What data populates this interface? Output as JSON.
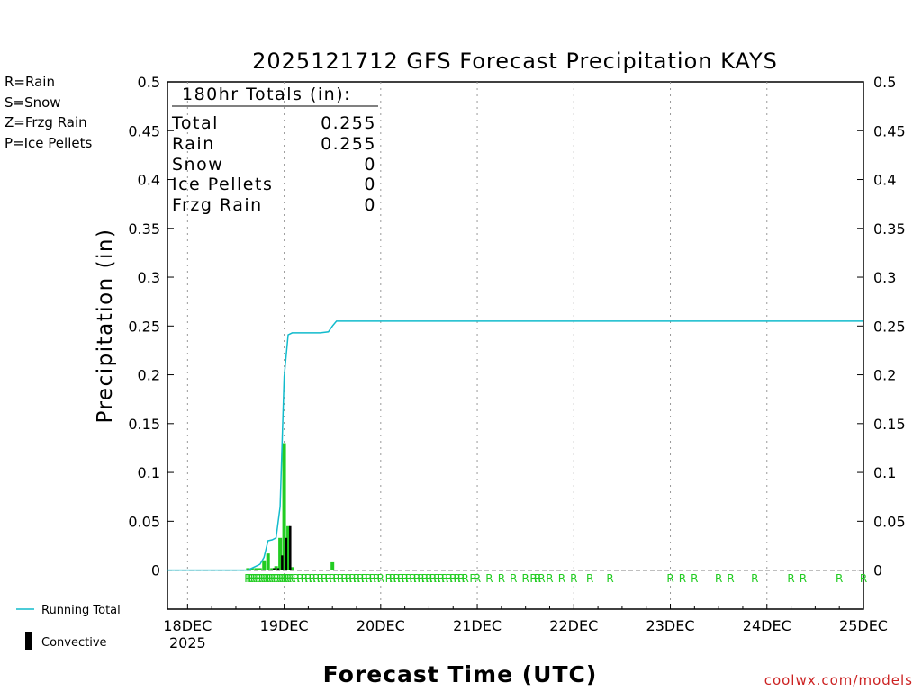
{
  "title": "2025121712 GFS Forecast Precipitation KAYS",
  "legend_types": [
    {
      "label": "R=Rain",
      "color": "#22cc22"
    },
    {
      "label": "S=Snow",
      "color": "#3355ee"
    },
    {
      "label": "Z=Frzg Rain",
      "color": "#ee8833"
    },
    {
      "label": "P=Ice Pellets",
      "color": "#ee22aa"
    }
  ],
  "totals": {
    "header": "180hr Totals (in):",
    "rows": [
      {
        "label": "Total",
        "value": "0.255"
      },
      {
        "label": "Rain",
        "value": "0.255"
      },
      {
        "label": "Snow",
        "value": "0"
      },
      {
        "label": "Ice Pellets",
        "value": "0"
      },
      {
        "label": "Frzg Rain",
        "value": "0"
      }
    ]
  },
  "legend_bottom": {
    "running_total": "Running Total",
    "convective": "Convective"
  },
  "watermark": "coolwx.com/models",
  "colors": {
    "rain": "#22cc22",
    "running_total": "#11bbcc",
    "convective": "#000000",
    "grid": "#999999"
  },
  "chart_data": {
    "type": "bar",
    "title": "2025121712 GFS Forecast Precipitation KAYS",
    "xlabel": "Forecast Time (UTC)",
    "ylabel": "Precipitation (in)",
    "ylim": [
      -0.04,
      0.5
    ],
    "xlim_hours": [
      -5,
      168
    ],
    "y_ticks": [
      "0",
      "0.05",
      "0.1",
      "0.15",
      "0.2",
      "0.25",
      "0.3",
      "0.35",
      "0.4",
      "0.45",
      "0.5"
    ],
    "x_ticks": [
      {
        "hour": 0,
        "label": "18DEC",
        "sublabel": "2025"
      },
      {
        "hour": 24,
        "label": "19DEC"
      },
      {
        "hour": 48,
        "label": "20DEC"
      },
      {
        "hour": 72,
        "label": "21DEC"
      },
      {
        "hour": 96,
        "label": "22DEC"
      },
      {
        "hour": 120,
        "label": "23DEC"
      },
      {
        "hour": 144,
        "label": "24DEC"
      },
      {
        "hour": 168,
        "label": "25DEC"
      }
    ],
    "grid": "vertical dotted",
    "series": [
      {
        "name": "Rain",
        "kind": "bar",
        "hours": [
          15,
          16,
          17,
          18,
          19,
          20,
          21,
          22,
          23,
          24,
          25,
          26,
          36
        ],
        "values": [
          0.002,
          0.002,
          0.002,
          0.002,
          0.01,
          0.017,
          0.002,
          0.004,
          0.033,
          0.13,
          0.045,
          0.003,
          0.008
        ]
      },
      {
        "name": "Convective",
        "kind": "bar",
        "hours": [
          21,
          22,
          23,
          24,
          25
        ],
        "values": [
          0.002,
          0.002,
          0.015,
          0.033,
          0.045
        ]
      },
      {
        "name": "Running Total",
        "kind": "line",
        "hours": [
          -5,
          15,
          16,
          17,
          18,
          19,
          20,
          21,
          22,
          23,
          24,
          25,
          26,
          27,
          30,
          33,
          35,
          36,
          37,
          168
        ],
        "values": [
          0,
          0,
          0.002,
          0.004,
          0.006,
          0.013,
          0.03,
          0.031,
          0.033,
          0.065,
          0.198,
          0.241,
          0.243,
          0.243,
          0.243,
          0.243,
          0.244,
          0.25,
          0.255,
          0.255
        ]
      }
    ],
    "precip_type_markers": {
      "symbol": "R",
      "hours": [
        15,
        15.5,
        16,
        16.5,
        17,
        17.5,
        18,
        18.5,
        19,
        19.5,
        20,
        20.5,
        21,
        21.5,
        22,
        22.5,
        23,
        23.5,
        24,
        24.5,
        25,
        25.5,
        26,
        27,
        28,
        29,
        30,
        31,
        32,
        33,
        34,
        35,
        36,
        37,
        38,
        39,
        40,
        41,
        42,
        43,
        44,
        45,
        46,
        47,
        48,
        50,
        51,
        52,
        53,
        54,
        55,
        56,
        57,
        58,
        59,
        60,
        61,
        62,
        63,
        64,
        65,
        66,
        67,
        68,
        69,
        71,
        72,
        75,
        78,
        81,
        84,
        86,
        87,
        88,
        90,
        93,
        96,
        100,
        105,
        120,
        123,
        126,
        132,
        135,
        141,
        150,
        153,
        162,
        168
      ]
    }
  }
}
